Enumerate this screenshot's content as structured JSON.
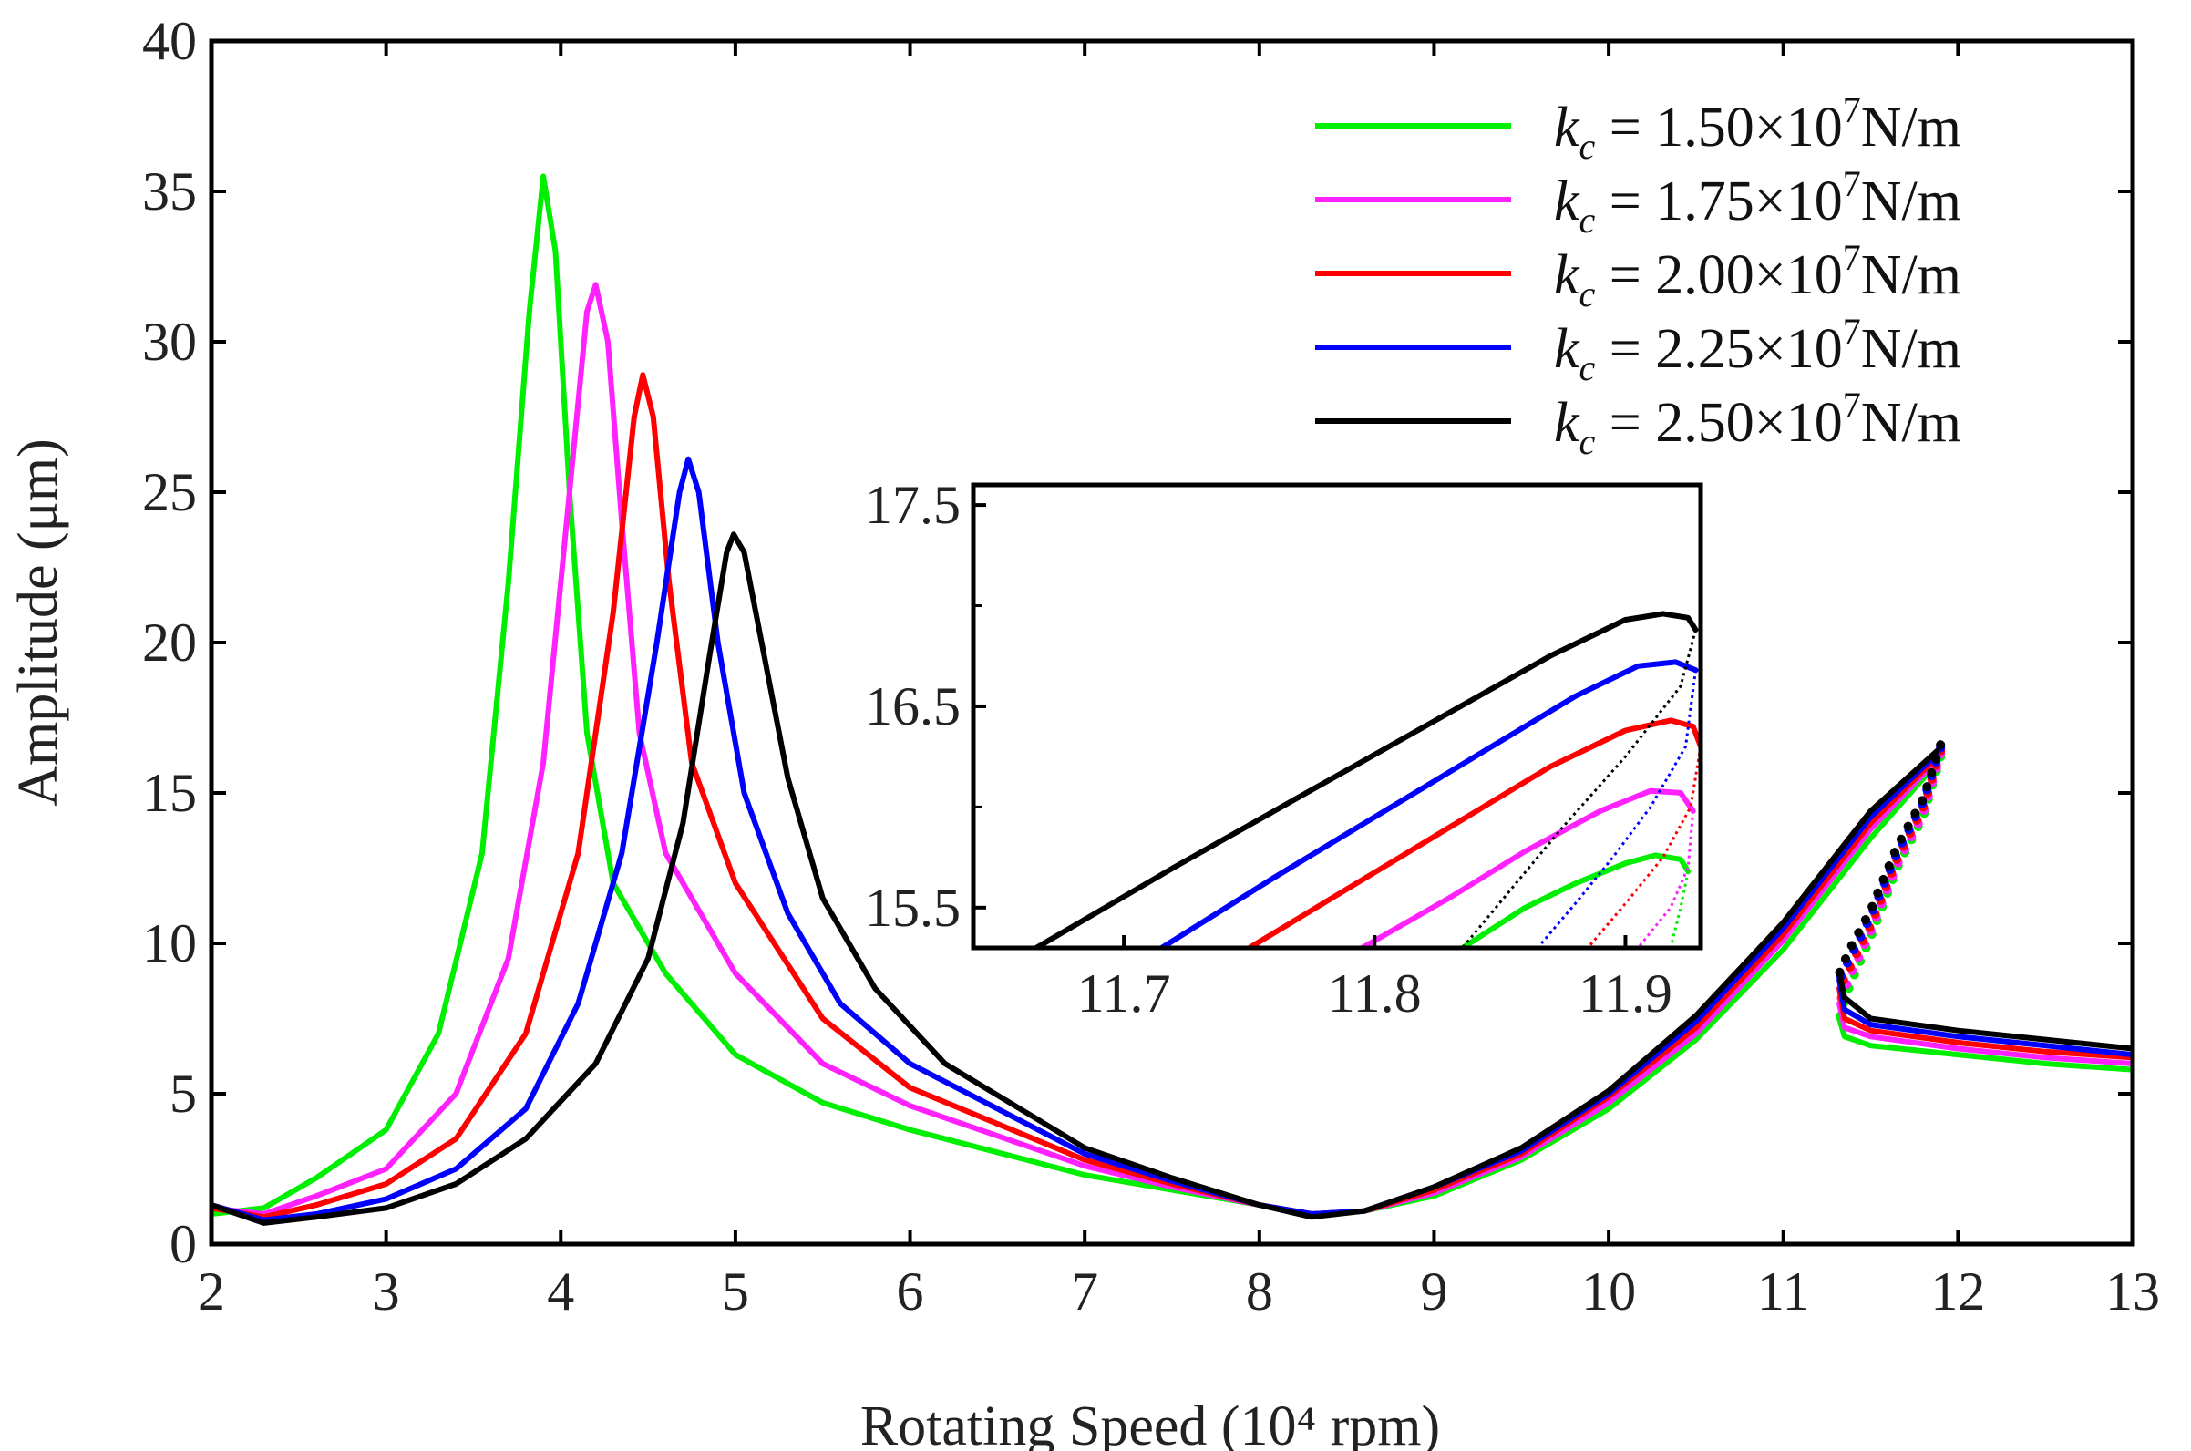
{
  "chart_data": {
    "type": "line",
    "title": "",
    "xlabel": "Rotating Speed (10⁴ rpm)",
    "ylabel": "Amplitude (μm)",
    "xlim": [
      2,
      13
    ],
    "ylim": [
      0,
      40
    ],
    "x_ticks": [
      "2",
      "3",
      "4",
      "5",
      "6",
      "7",
      "8",
      "9",
      "10",
      "11",
      "12",
      "13"
    ],
    "y_ticks": [
      "0",
      "5",
      "10",
      "15",
      "20",
      "25",
      "30",
      "35",
      "40"
    ],
    "legend_position": "top-right",
    "series": [
      {
        "name": "k_c = 1.50×10^7 N/m",
        "legend": {
          "k": "k",
          "sub": "c",
          "eq": " = 1.50×10",
          "exp": "7",
          "unit": "N/m"
        },
        "color": "#00ee00",
        "stable_points": [
          [
            2.0,
            1.0
          ],
          [
            2.3,
            1.2
          ],
          [
            2.6,
            2.2
          ],
          [
            3.0,
            3.8
          ],
          [
            3.3,
            7.0
          ],
          [
            3.55,
            13.0
          ],
          [
            3.7,
            22.0
          ],
          [
            3.82,
            31.0
          ],
          [
            3.9,
            35.5
          ],
          [
            3.97,
            33.0
          ],
          [
            4.05,
            25.0
          ],
          [
            4.15,
            17.0
          ],
          [
            4.3,
            12.0
          ],
          [
            4.6,
            9.0
          ],
          [
            5.0,
            6.3
          ],
          [
            5.5,
            4.7
          ],
          [
            6.0,
            3.8
          ],
          [
            7.0,
            2.3
          ],
          [
            7.5,
            1.8
          ],
          [
            8.0,
            1.3
          ],
          [
            8.3,
            1.0
          ],
          [
            8.6,
            1.1
          ],
          [
            9.0,
            1.6
          ],
          [
            9.5,
            2.8
          ],
          [
            10.0,
            4.5
          ],
          [
            10.5,
            6.8
          ],
          [
            11.0,
            9.8
          ],
          [
            11.5,
            13.5
          ],
          [
            11.88,
            16.0
          ]
        ],
        "upper_branch_points": [
          [
            11.32,
            7.5
          ],
          [
            11.35,
            6.9
          ],
          [
            11.5,
            6.6
          ],
          [
            12.0,
            6.3
          ],
          [
            12.5,
            6.0
          ],
          [
            13.0,
            5.8
          ]
        ],
        "unstable_points": [
          [
            11.9,
            16.2
          ],
          [
            11.8,
            14.2
          ],
          [
            11.65,
            12.5
          ],
          [
            11.5,
            10.2
          ],
          [
            11.38,
            8.6
          ],
          [
            11.32,
            7.5
          ]
        ],
        "inset_stable": [
          [
            11.835,
            15.3
          ],
          [
            11.86,
            15.5
          ],
          [
            11.88,
            15.62
          ],
          [
            11.9,
            15.72
          ],
          [
            11.912,
            15.76
          ],
          [
            11.922,
            15.74
          ],
          [
            11.925,
            15.68
          ]
        ],
        "inset_unstable": [
          [
            11.925,
            15.68
          ],
          [
            11.922,
            15.5
          ],
          [
            11.918,
            15.3
          ]
        ]
      },
      {
        "name": "k_c = 1.75×10^7 N/m",
        "legend": {
          "k": "k",
          "sub": "c",
          "eq": " = 1.75×10",
          "exp": "7",
          "unit": "N/m"
        },
        "color": "#ff22ff",
        "stable_points": [
          [
            2.0,
            1.2
          ],
          [
            2.3,
            1.0
          ],
          [
            2.6,
            1.6
          ],
          [
            3.0,
            2.5
          ],
          [
            3.4,
            5.0
          ],
          [
            3.7,
            9.5
          ],
          [
            3.9,
            16.0
          ],
          [
            4.05,
            25.0
          ],
          [
            4.15,
            31.0
          ],
          [
            4.2,
            31.9
          ],
          [
            4.27,
            30.0
          ],
          [
            4.35,
            24.0
          ],
          [
            4.45,
            17.0
          ],
          [
            4.6,
            13.0
          ],
          [
            5.0,
            9.0
          ],
          [
            5.5,
            6.0
          ],
          [
            6.0,
            4.6
          ],
          [
            7.0,
            2.6
          ],
          [
            7.5,
            1.9
          ],
          [
            8.0,
            1.3
          ],
          [
            8.3,
            1.0
          ],
          [
            8.6,
            1.1
          ],
          [
            9.0,
            1.7
          ],
          [
            9.5,
            2.9
          ],
          [
            10.0,
            4.7
          ],
          [
            10.5,
            7.0
          ],
          [
            11.0,
            10.1
          ],
          [
            11.5,
            13.8
          ],
          [
            11.88,
            16.1
          ]
        ],
        "upper_branch_points": [
          [
            11.32,
            8.0
          ],
          [
            11.35,
            7.2
          ],
          [
            11.5,
            6.9
          ],
          [
            12.0,
            6.5
          ],
          [
            12.5,
            6.2
          ],
          [
            13.0,
            6.0
          ]
        ],
        "unstable_points": [
          [
            11.9,
            16.3
          ],
          [
            11.8,
            14.3
          ],
          [
            11.65,
            12.6
          ],
          [
            11.5,
            10.4
          ],
          [
            11.38,
            8.9
          ],
          [
            11.32,
            8.0
          ]
        ],
        "inset_stable": [
          [
            11.795,
            15.3
          ],
          [
            11.83,
            15.55
          ],
          [
            11.86,
            15.78
          ],
          [
            11.89,
            15.98
          ],
          [
            11.91,
            16.08
          ],
          [
            11.922,
            16.07
          ],
          [
            11.927,
            15.98
          ]
        ],
        "inset_unstable": [
          [
            11.927,
            15.98
          ],
          [
            11.925,
            15.7
          ],
          [
            11.918,
            15.5
          ],
          [
            11.905,
            15.3
          ]
        ]
      },
      {
        "name": "k_c = 2.00×10^7 N/m",
        "legend": {
          "k": "k",
          "sub": "c",
          "eq": " = 2.00×10",
          "exp": "7",
          "unit": "N/m"
        },
        "color": "#ff0000",
        "stable_points": [
          [
            2.0,
            1.2
          ],
          [
            2.3,
            0.9
          ],
          [
            2.6,
            1.3
          ],
          [
            3.0,
            2.0
          ],
          [
            3.4,
            3.5
          ],
          [
            3.8,
            7.0
          ],
          [
            4.1,
            13.0
          ],
          [
            4.3,
            21.0
          ],
          [
            4.42,
            27.5
          ],
          [
            4.47,
            28.9
          ],
          [
            4.53,
            27.5
          ],
          [
            4.62,
            22.0
          ],
          [
            4.75,
            16.0
          ],
          [
            5.0,
            12.0
          ],
          [
            5.5,
            7.5
          ],
          [
            6.0,
            5.2
          ],
          [
            7.0,
            2.8
          ],
          [
            7.5,
            2.0
          ],
          [
            8.0,
            1.3
          ],
          [
            8.3,
            1.0
          ],
          [
            8.6,
            1.1
          ],
          [
            9.0,
            1.8
          ],
          [
            9.5,
            3.0
          ],
          [
            10.0,
            4.9
          ],
          [
            10.5,
            7.2
          ],
          [
            11.0,
            10.3
          ],
          [
            11.5,
            14.0
          ],
          [
            11.88,
            16.2
          ]
        ],
        "upper_branch_points": [
          [
            11.32,
            8.5
          ],
          [
            11.35,
            7.5
          ],
          [
            11.5,
            7.1
          ],
          [
            12.0,
            6.7
          ],
          [
            12.5,
            6.4
          ],
          [
            13.0,
            6.2
          ]
        ],
        "unstable_points": [
          [
            11.9,
            16.4
          ],
          [
            11.8,
            14.5
          ],
          [
            11.65,
            12.8
          ],
          [
            11.5,
            10.6
          ],
          [
            11.38,
            9.2
          ],
          [
            11.32,
            8.5
          ]
        ],
        "inset_stable": [
          [
            11.75,
            15.3
          ],
          [
            11.79,
            15.6
          ],
          [
            11.83,
            15.9
          ],
          [
            11.87,
            16.2
          ],
          [
            11.9,
            16.38
          ],
          [
            11.918,
            16.43
          ],
          [
            11.927,
            16.4
          ],
          [
            11.93,
            16.3
          ]
        ],
        "inset_unstable": [
          [
            11.93,
            16.3
          ],
          [
            11.926,
            16.0
          ],
          [
            11.915,
            15.75
          ],
          [
            11.9,
            15.52
          ],
          [
            11.885,
            15.3
          ]
        ]
      },
      {
        "name": "k_c = 2.25×10^7 N/m",
        "legend": {
          "k": "k",
          "sub": "c",
          "eq": " = 2.25×10",
          "exp": "7",
          "unit": "N/m"
        },
        "color": "#0000ff",
        "stable_points": [
          [
            2.0,
            1.3
          ],
          [
            2.3,
            0.8
          ],
          [
            2.6,
            1.0
          ],
          [
            3.0,
            1.5
          ],
          [
            3.4,
            2.5
          ],
          [
            3.8,
            4.5
          ],
          [
            4.1,
            8.0
          ],
          [
            4.35,
            13.0
          ],
          [
            4.55,
            20.0
          ],
          [
            4.68,
            25.0
          ],
          [
            4.73,
            26.1
          ],
          [
            4.79,
            25.0
          ],
          [
            4.9,
            20.0
          ],
          [
            5.05,
            15.0
          ],
          [
            5.3,
            11.0
          ],
          [
            5.6,
            8.0
          ],
          [
            6.0,
            6.0
          ],
          [
            7.0,
            3.0
          ],
          [
            7.5,
            2.1
          ],
          [
            8.0,
            1.3
          ],
          [
            8.3,
            1.0
          ],
          [
            8.6,
            1.1
          ],
          [
            9.0,
            1.9
          ],
          [
            9.5,
            3.1
          ],
          [
            10.0,
            5.0
          ],
          [
            10.5,
            7.4
          ],
          [
            11.0,
            10.5
          ],
          [
            11.5,
            14.2
          ],
          [
            11.88,
            16.3
          ]
        ],
        "upper_branch_points": [
          [
            11.32,
            8.8
          ],
          [
            11.35,
            7.8
          ],
          [
            11.5,
            7.3
          ],
          [
            12.0,
            6.9
          ],
          [
            12.5,
            6.6
          ],
          [
            13.0,
            6.3
          ]
        ],
        "unstable_points": [
          [
            11.9,
            16.5
          ],
          [
            11.8,
            14.7
          ],
          [
            11.65,
            13.0
          ],
          [
            11.5,
            10.9
          ],
          [
            11.38,
            9.5
          ],
          [
            11.32,
            8.8
          ]
        ],
        "inset_stable": [
          [
            11.715,
            15.3
          ],
          [
            11.76,
            15.65
          ],
          [
            11.8,
            15.95
          ],
          [
            11.84,
            16.25
          ],
          [
            11.88,
            16.55
          ],
          [
            11.905,
            16.7
          ],
          [
            11.92,
            16.72
          ],
          [
            11.928,
            16.68
          ]
        ],
        "inset_unstable": [
          [
            11.928,
            16.68
          ],
          [
            11.924,
            16.3
          ],
          [
            11.91,
            16.0
          ],
          [
            11.895,
            15.75
          ],
          [
            11.88,
            15.52
          ],
          [
            11.865,
            15.3
          ]
        ]
      },
      {
        "name": "k_c = 2.50×10^7 N/m",
        "legend": {
          "k": "k",
          "sub": "c",
          "eq": " = 2.50×10",
          "exp": "7",
          "unit": "N/m"
        },
        "color": "#000000",
        "stable_points": [
          [
            2.0,
            1.3
          ],
          [
            2.3,
            0.7
          ],
          [
            2.6,
            0.9
          ],
          [
            3.0,
            1.2
          ],
          [
            3.4,
            2.0
          ],
          [
            3.8,
            3.5
          ],
          [
            4.2,
            6.0
          ],
          [
            4.5,
            9.5
          ],
          [
            4.7,
            14.0
          ],
          [
            4.85,
            19.5
          ],
          [
            4.95,
            23.0
          ],
          [
            4.99,
            23.6
          ],
          [
            5.05,
            23.0
          ],
          [
            5.15,
            20.0
          ],
          [
            5.3,
            15.5
          ],
          [
            5.5,
            11.5
          ],
          [
            5.8,
            8.5
          ],
          [
            6.2,
            6.0
          ],
          [
            7.0,
            3.2
          ],
          [
            7.5,
            2.2
          ],
          [
            8.0,
            1.3
          ],
          [
            8.3,
            0.9
          ],
          [
            8.6,
            1.1
          ],
          [
            9.0,
            1.9
          ],
          [
            9.5,
            3.2
          ],
          [
            10.0,
            5.1
          ],
          [
            10.5,
            7.6
          ],
          [
            11.0,
            10.7
          ],
          [
            11.5,
            14.4
          ],
          [
            11.88,
            16.4
          ]
        ],
        "upper_branch_points": [
          [
            11.32,
            9.0
          ],
          [
            11.35,
            8.2
          ],
          [
            11.5,
            7.5
          ],
          [
            12.0,
            7.1
          ],
          [
            12.5,
            6.8
          ],
          [
            13.0,
            6.5
          ]
        ],
        "unstable_points": [
          [
            11.9,
            16.6
          ],
          [
            11.8,
            14.8
          ],
          [
            11.65,
            13.2
          ],
          [
            11.5,
            11.1
          ],
          [
            11.38,
            9.8
          ],
          [
            11.32,
            9.0
          ]
        ],
        "inset_stable": [
          [
            11.665,
            15.3
          ],
          [
            11.72,
            15.7
          ],
          [
            11.77,
            16.05
          ],
          [
            11.82,
            16.4
          ],
          [
            11.87,
            16.75
          ],
          [
            11.9,
            16.93
          ],
          [
            11.915,
            16.96
          ],
          [
            11.925,
            16.94
          ],
          [
            11.928,
            16.88
          ]
        ],
        "inset_unstable": [
          [
            11.928,
            16.88
          ],
          [
            11.922,
            16.6
          ],
          [
            11.9,
            16.25
          ],
          [
            11.875,
            15.9
          ],
          [
            11.855,
            15.6
          ],
          [
            11.835,
            15.3
          ]
        ]
      }
    ],
    "inset": {
      "xlim": [
        11.64,
        11.93
      ],
      "ylim": [
        15.3,
        17.6
      ],
      "x_ticks": [
        "11.7",
        "11.8",
        "11.9"
      ],
      "y_ticks": [
        "15.5",
        "16.5",
        "17.5"
      ]
    }
  }
}
